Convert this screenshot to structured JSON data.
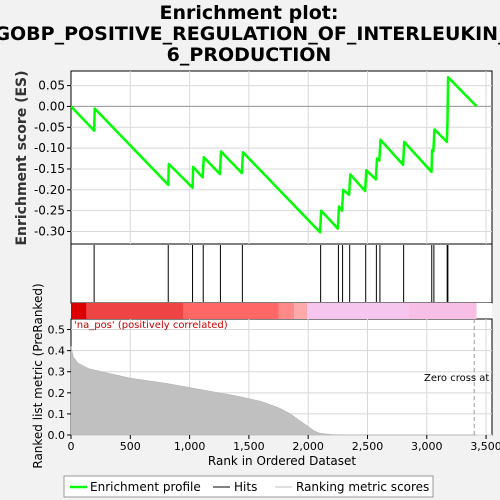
{
  "chart_data": {
    "type": "line",
    "title_lines": [
      "Enrichment plot:",
      "GOBP_POSITIVE_REGULATION_OF_INTERLEUKIN_",
      "6_PRODUCTION"
    ],
    "x_label": "Rank in Ordered Dataset",
    "x_range": [
      0,
      3550
    ],
    "x_ticks": [
      0,
      500,
      1000,
      1500,
      2000,
      2500,
      3000,
      3500
    ],
    "x_tick_labels": [
      "0",
      "500",
      "1,000",
      "1,500",
      "2,000",
      "2,500",
      "3,000",
      "3,500"
    ],
    "es_panel": {
      "ylabel": "Enrichment score (ES)",
      "ylim": [
        -0.33,
        0.085
      ],
      "y_ticks": [
        0.05,
        0.0,
        -0.05,
        -0.1,
        -0.15,
        -0.2,
        -0.25,
        -0.3
      ],
      "y_tick_labels": [
        "0.05",
        "0.00",
        "-0.05",
        "-0.10",
        "-0.15",
        "-0.20",
        "-0.25",
        "-0.30"
      ],
      "baseline": 0,
      "series": [
        {
          "name": "Enrichment profile",
          "color": "#00ff00",
          "points": [
            [
              0,
              0.0
            ],
            [
              195,
              -0.058
            ],
            [
              200,
              -0.005
            ],
            [
              820,
              -0.188
            ],
            [
              825,
              -0.138
            ],
            [
              1025,
              -0.195
            ],
            [
              1030,
              -0.145
            ],
            [
              1110,
              -0.17
            ],
            [
              1120,
              -0.122
            ],
            [
              1255,
              -0.162
            ],
            [
              1265,
              -0.108
            ],
            [
              1440,
              -0.16
            ],
            [
              1450,
              -0.11
            ],
            [
              2100,
              -0.302
            ],
            [
              2110,
              -0.25
            ],
            [
              2250,
              -0.293
            ],
            [
              2260,
              -0.24
            ],
            [
              2285,
              -0.25
            ],
            [
              2295,
              -0.2
            ],
            [
              2345,
              -0.212
            ],
            [
              2355,
              -0.163
            ],
            [
              2480,
              -0.203
            ],
            [
              2490,
              -0.153
            ],
            [
              2570,
              -0.175
            ],
            [
              2580,
              -0.125
            ],
            [
              2600,
              -0.13
            ],
            [
              2610,
              -0.08
            ],
            [
              2800,
              -0.14
            ],
            [
              2810,
              -0.085
            ],
            [
              3040,
              -0.157
            ],
            [
              3045,
              -0.105
            ],
            [
              3055,
              -0.108
            ],
            [
              3065,
              -0.055
            ],
            [
              3170,
              -0.085
            ],
            [
              3175,
              -0.035
            ],
            [
              3180,
              0.07
            ],
            [
              3420,
              0.0
            ]
          ]
        }
      ]
    },
    "hits": {
      "name": "Hits",
      "color": "#000000",
      "positions": [
        195,
        820,
        1025,
        1115,
        1260,
        1445,
        2105,
        2255,
        2290,
        2350,
        2485,
        2575,
        2605,
        2805,
        3042,
        3060,
        3172,
        3178
      ]
    },
    "rank_panel": {
      "ylabel": "Ranked list metric (PreRanked)",
      "ylim": [
        0,
        0.55
      ],
      "y_ticks": [
        0.0,
        0.1,
        0.2,
        0.3,
        0.4,
        0.5
      ],
      "y_tick_labels": [
        "0.0",
        "0.1",
        "0.2",
        "0.3",
        "0.4",
        "0.5"
      ],
      "series": [
        {
          "name": "Ranking metric scores",
          "color": "#c0c0c0",
          "points": [
            [
              0,
              0.42
            ],
            [
              20,
              0.37
            ],
            [
              60,
              0.34
            ],
            [
              150,
              0.315
            ],
            [
              300,
              0.295
            ],
            [
              500,
              0.27
            ],
            [
              800,
              0.245
            ],
            [
              1000,
              0.225
            ],
            [
              1200,
              0.205
            ],
            [
              1400,
              0.185
            ],
            [
              1600,
              0.16
            ],
            [
              1750,
              0.13
            ],
            [
              1850,
              0.1
            ],
            [
              1950,
              0.06
            ],
            [
              2050,
              0.02
            ],
            [
              2100,
              0.008
            ],
            [
              2200,
              0.002
            ],
            [
              2500,
              0.0
            ],
            [
              3420,
              0.0
            ]
          ]
        }
      ],
      "annotations": {
        "na_pos": "'na_pos' (positively correlated)",
        "zero_cross": "Zero cross at"
      },
      "zero_cross_x": 3400
    },
    "color_bar": {
      "segments": [
        {
          "x0": 0,
          "x1": 130,
          "color": "#dd0000"
        },
        {
          "x0": 130,
          "x1": 950,
          "color": "#ee4444"
        },
        {
          "x0": 950,
          "x1": 1750,
          "color": "#ff6666"
        },
        {
          "x0": 1750,
          "x1": 1880,
          "color": "#ff8888"
        },
        {
          "x0": 1880,
          "x1": 1990,
          "color": "#ffaaaa"
        },
        {
          "x0": 1990,
          "x1": 2850,
          "color": "#f7c6ee"
        },
        {
          "x0": 2850,
          "x1": 3420,
          "color": "#f8bfe6"
        }
      ]
    },
    "legend": {
      "position": "bottom",
      "items": [
        {
          "label": "Enrichment profile",
          "color": "#00ff00",
          "style": "thick"
        },
        {
          "label": "Hits",
          "color": "#000000",
          "style": "thin"
        },
        {
          "label": "Ranking metric scores",
          "color": "#c0c0c0",
          "style": "thin"
        }
      ]
    }
  }
}
